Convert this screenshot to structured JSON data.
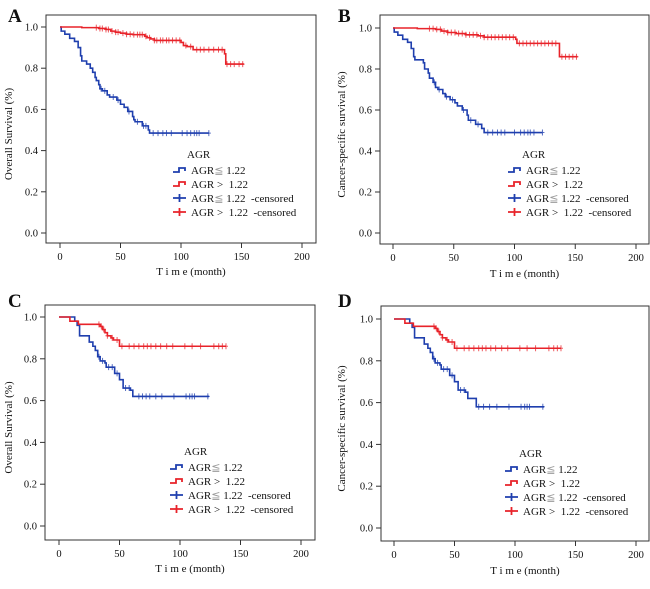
{
  "chart_data": [
    {
      "type": "line",
      "panel": "A",
      "title": "",
      "xlabel": "T i m e (month)",
      "ylabel": "Overall Survival (%)",
      "xlim": [
        0,
        200
      ],
      "ylim": [
        0,
        1
      ],
      "xticks": [
        "0",
        "50",
        "100",
        "150",
        "200"
      ],
      "yticks": [
        "0.0",
        "0.2",
        "0.4",
        "0.6",
        "0.8",
        "1.0"
      ],
      "grid": false,
      "legend_placement": "bottom-right",
      "legend_title": "AGR",
      "legend": [
        "AGR",
        "≦",
        " 1.22",
        "AGR",
        " > ",
        " 1.22",
        "AGR",
        "≦",
        " 1.22  -censored",
        "AGR",
        " > ",
        " 1.22  -censored"
      ],
      "series": [
        {
          "name": "AGR ≦ 1.22",
          "color": "#1f3fae",
          "steps": [
            [
              0,
              1.0
            ],
            [
              1,
              0.98
            ],
            [
              4,
              0.965
            ],
            [
              8,
              0.945
            ],
            [
              12,
              0.93
            ],
            [
              15,
              0.9
            ],
            [
              17,
              0.86
            ],
            [
              18,
              0.835
            ],
            [
              22,
              0.82
            ],
            [
              25,
              0.8
            ],
            [
              27,
              0.78
            ],
            [
              29,
              0.755
            ],
            [
              30,
              0.74
            ],
            [
              32,
              0.72
            ],
            [
              33,
              0.7
            ],
            [
              35,
              0.69
            ],
            [
              39,
              0.67
            ],
            [
              41,
              0.66
            ],
            [
              47,
              0.645
            ],
            [
              50,
              0.625
            ],
            [
              53,
              0.61
            ],
            [
              56,
              0.59
            ],
            [
              60,
              0.565
            ],
            [
              61,
              0.55
            ],
            [
              62,
              0.54
            ],
            [
              68,
              0.52
            ],
            [
              73,
              0.5
            ],
            [
              74,
              0.485
            ],
            [
              123,
              0.485
            ]
          ],
          "censored": [
            34,
            37,
            44,
            48,
            57,
            64,
            69,
            71,
            77,
            81,
            85,
            88,
            92,
            101,
            105,
            108,
            111,
            113,
            115,
            123
          ]
        },
        {
          "name": "AGR > 1.22",
          "color": "#e8232a",
          "steps": [
            [
              0,
              1.0
            ],
            [
              18,
              0.997
            ],
            [
              32,
              0.993
            ],
            [
              38,
              0.988
            ],
            [
              42,
              0.98
            ],
            [
              46,
              0.975
            ],
            [
              50,
              0.97
            ],
            [
              55,
              0.965
            ],
            [
              60,
              0.963
            ],
            [
              70,
              0.955
            ],
            [
              72,
              0.948
            ],
            [
              75,
              0.942
            ],
            [
              78,
              0.935
            ],
            [
              100,
              0.925
            ],
            [
              102,
              0.91
            ],
            [
              105,
              0.905
            ],
            [
              110,
              0.89
            ],
            [
              136,
              0.87
            ],
            [
              137,
              0.82
            ],
            [
              152,
              0.82
            ]
          ],
          "censored": [
            30,
            33,
            35,
            38,
            40,
            43,
            46,
            48,
            52,
            55,
            58,
            61,
            64,
            66,
            68,
            71,
            74,
            78,
            80,
            83,
            85,
            88,
            90,
            93,
            96,
            99,
            104,
            108,
            113,
            116,
            119,
            123,
            127,
            131,
            134,
            138,
            141,
            144,
            148,
            151
          ]
        }
      ]
    },
    {
      "type": "line",
      "panel": "B",
      "title": "",
      "xlabel": "T i m e (month)",
      "ylabel": "Cancer-specific survival (%)",
      "xlim": [
        0,
        200
      ],
      "ylim": [
        0,
        1
      ],
      "xticks": [
        "0",
        "50",
        "100",
        "150",
        "200"
      ],
      "yticks": [
        "0.0",
        "0.2",
        "0.4",
        "0.6",
        "0.8",
        "1.0"
      ],
      "grid": false,
      "legend_placement": "bottom-right",
      "legend_title": "AGR",
      "legend": [
        "AGR",
        "≦",
        " 1.22",
        "AGR",
        " > ",
        " 1.22",
        "AGR",
        "≦",
        " 1.22  -censored",
        "AGR",
        " > ",
        " 1.22  -censored"
      ],
      "series": [
        {
          "name": "AGR ≦ 1.22",
          "color": "#1f3fae",
          "steps": [
            [
              0,
              1.0
            ],
            [
              1,
              0.98
            ],
            [
              4,
              0.965
            ],
            [
              8,
              0.945
            ],
            [
              12,
              0.93
            ],
            [
              15,
              0.9
            ],
            [
              17,
              0.86
            ],
            [
              18,
              0.845
            ],
            [
              25,
              0.83
            ],
            [
              26,
              0.8
            ],
            [
              29,
              0.78
            ],
            [
              30,
              0.755
            ],
            [
              33,
              0.735
            ],
            [
              35,
              0.71
            ],
            [
              37,
              0.7
            ],
            [
              41,
              0.68
            ],
            [
              43,
              0.665
            ],
            [
              47,
              0.65
            ],
            [
              51,
              0.635
            ],
            [
              53,
              0.62
            ],
            [
              57,
              0.6
            ],
            [
              61,
              0.575
            ],
            [
              62,
              0.55
            ],
            [
              68,
              0.53
            ],
            [
              73,
              0.51
            ],
            [
              75,
              0.49
            ],
            [
              123,
              0.49
            ]
          ],
          "censored": [
            34,
            38,
            44,
            49,
            58,
            64,
            70,
            78,
            82,
            86,
            89,
            92,
            100,
            105,
            108,
            111,
            113,
            116,
            123
          ]
        },
        {
          "name": "AGR > 1.22",
          "color": "#e8232a",
          "steps": [
            [
              0,
              1.0
            ],
            [
              20,
              0.997
            ],
            [
              35,
              0.993
            ],
            [
              40,
              0.985
            ],
            [
              45,
              0.978
            ],
            [
              52,
              0.973
            ],
            [
              60,
              0.967
            ],
            [
              70,
              0.962
            ],
            [
              75,
              0.955
            ],
            [
              101,
              0.945
            ],
            [
              102,
              0.925
            ],
            [
              136,
              0.925
            ],
            [
              137,
              0.86
            ],
            [
              152,
              0.86
            ]
          ],
          "censored": [
            30,
            33,
            36,
            39,
            42,
            45,
            48,
            51,
            54,
            57,
            60,
            63,
            66,
            69,
            72,
            75,
            78,
            81,
            84,
            87,
            90,
            93,
            96,
            99,
            104,
            107,
            110,
            113,
            116,
            119,
            122,
            125,
            128,
            131,
            134,
            139,
            142,
            145,
            148,
            151
          ]
        }
      ]
    },
    {
      "type": "line",
      "panel": "C",
      "title": "",
      "xlabel": "T i m e (month)",
      "ylabel": "Overall Survival (%)",
      "xlim": [
        0,
        200
      ],
      "ylim": [
        0,
        1
      ],
      "xticks": [
        "0",
        "50",
        "100",
        "150",
        "200"
      ],
      "yticks": [
        "0.0",
        "0.2",
        "0.4",
        "0.6",
        "0.8",
        "1.0"
      ],
      "grid": false,
      "legend_placement": "bottom-right",
      "legend_title": "AGR",
      "legend": [
        "AGR",
        "≦",
        " 1.22",
        "AGR",
        " > ",
        " 1.22",
        "AGR",
        "≦",
        " 1.22  -censored",
        "AGR",
        " > ",
        " 1.22  -censored"
      ],
      "series": [
        {
          "name": "AGR ≦ 1.22",
          "color": "#1f3fae",
          "steps": [
            [
              0,
              1.0
            ],
            [
              13,
              0.98
            ],
            [
              15,
              0.96
            ],
            [
              17,
              0.91
            ],
            [
              25,
              0.88
            ],
            [
              28,
              0.86
            ],
            [
              30,
              0.84
            ],
            [
              32,
              0.81
            ],
            [
              34,
              0.79
            ],
            [
              38,
              0.78
            ],
            [
              39,
              0.76
            ],
            [
              46,
              0.73
            ],
            [
              50,
              0.7
            ],
            [
              53,
              0.66
            ],
            [
              59,
              0.65
            ],
            [
              61,
              0.62
            ],
            [
              124,
              0.62
            ]
          ],
          "censored": [
            33,
            36,
            41,
            44,
            48,
            55,
            58,
            66,
            69,
            72,
            75,
            80,
            85,
            95,
            105,
            108,
            110,
            112,
            123
          ]
        },
        {
          "name": "AGR > 1.22",
          "color": "#e8232a",
          "steps": [
            [
              0,
              1.0
            ],
            [
              9,
              0.98
            ],
            [
              16,
              0.965
            ],
            [
              34,
              0.955
            ],
            [
              36,
              0.94
            ],
            [
              38,
              0.925
            ],
            [
              40,
              0.91
            ],
            [
              43,
              0.9
            ],
            [
              45,
              0.89
            ],
            [
              50,
              0.86
            ],
            [
              138,
              0.86
            ]
          ],
          "censored": [
            33,
            35,
            37,
            40,
            44,
            48,
            52,
            58,
            62,
            66,
            70,
            73,
            76,
            80,
            84,
            89,
            94,
            104,
            110,
            117,
            128,
            132,
            135,
            138
          ]
        }
      ]
    },
    {
      "type": "line",
      "panel": "D",
      "title": "",
      "xlabel": "T i m e (month)",
      "ylabel": "Cancer-specific survival (%)",
      "xlim": [
        0,
        200
      ],
      "ylim": [
        0,
        1
      ],
      "xticks": [
        "0",
        "50",
        "100",
        "150",
        "200"
      ],
      "yticks": [
        "0.0",
        "0.2",
        "0.4",
        "0.6",
        "0.8",
        "1.0"
      ],
      "grid": false,
      "legend_placement": "bottom-right",
      "legend_title": "AGR",
      "legend": [
        "AGR",
        "≦",
        " 1.22",
        "AGR",
        " > ",
        " 1.22",
        "AGR",
        "≦",
        " 1.22  -censored",
        "AGR",
        " > ",
        " 1.22  -censored"
      ],
      "series": [
        {
          "name": "AGR ≦ 1.22",
          "color": "#1f3fae",
          "steps": [
            [
              0,
              1.0
            ],
            [
              13,
              0.98
            ],
            [
              15,
              0.96
            ],
            [
              17,
              0.91
            ],
            [
              25,
              0.88
            ],
            [
              28,
              0.86
            ],
            [
              30,
              0.84
            ],
            [
              32,
              0.81
            ],
            [
              34,
              0.79
            ],
            [
              38,
              0.78
            ],
            [
              39,
              0.76
            ],
            [
              46,
              0.73
            ],
            [
              50,
              0.7
            ],
            [
              53,
              0.66
            ],
            [
              59,
              0.65
            ],
            [
              61,
              0.62
            ],
            [
              68,
              0.58
            ],
            [
              124,
              0.58
            ]
          ],
          "censored": [
            33,
            36,
            41,
            44,
            48,
            55,
            58,
            70,
            74,
            79,
            85,
            95,
            105,
            108,
            110,
            112,
            123
          ]
        },
        {
          "name": "AGR > 1.22",
          "color": "#e8232a",
          "steps": [
            [
              0,
              1.0
            ],
            [
              9,
              0.98
            ],
            [
              16,
              0.965
            ],
            [
              34,
              0.955
            ],
            [
              36,
              0.94
            ],
            [
              38,
              0.925
            ],
            [
              40,
              0.91
            ],
            [
              43,
              0.9
            ],
            [
              45,
              0.89
            ],
            [
              50,
              0.86
            ],
            [
              138,
              0.86
            ]
          ],
          "censored": [
            33,
            35,
            37,
            40,
            44,
            48,
            52,
            58,
            62,
            66,
            70,
            73,
            76,
            80,
            84,
            89,
            94,
            104,
            110,
            117,
            128,
            132,
            135,
            138
          ]
        }
      ]
    }
  ],
  "panels": [
    {
      "letter": "A"
    },
    {
      "letter": "B"
    },
    {
      "letter": "C"
    },
    {
      "letter": "D"
    }
  ]
}
